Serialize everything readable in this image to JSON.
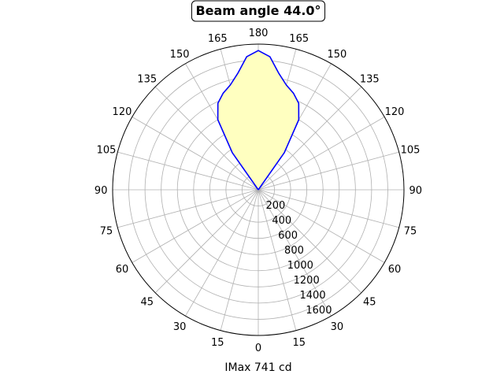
{
  "chart_data": {
    "type": "polar-line",
    "title": "Beam angle 44.0°",
    "xlabel": "IMax 741 cd",
    "angle_tick_labels": [
      "0",
      "15",
      "30",
      "45",
      "60",
      "75",
      "90",
      "105",
      "120",
      "135",
      "150",
      "165",
      "180",
      "165",
      "150",
      "135",
      "120",
      "105",
      "90",
      "75",
      "60",
      "45",
      "30",
      "15"
    ],
    "radial_tick_labels": [
      "200",
      "400",
      "600",
      "800",
      "1000",
      "1200",
      "1400",
      "1600"
    ],
    "radial_ticks": [
      200,
      400,
      600,
      800,
      1000,
      1200,
      1400,
      1600
    ],
    "rlim": [
      0,
      1800
    ],
    "grid": true,
    "series": [
      {
        "color": "#0000ff",
        "fill": "#ffffc0",
        "angle_deg": [
          180,
          175,
          170,
          165,
          160,
          155,
          150,
          145,
          140
        ],
        "intensity": [
          1720,
          1650,
          1460,
          1340,
          1270,
          1180,
          1000,
          560,
          0
        ]
      }
    ]
  }
}
